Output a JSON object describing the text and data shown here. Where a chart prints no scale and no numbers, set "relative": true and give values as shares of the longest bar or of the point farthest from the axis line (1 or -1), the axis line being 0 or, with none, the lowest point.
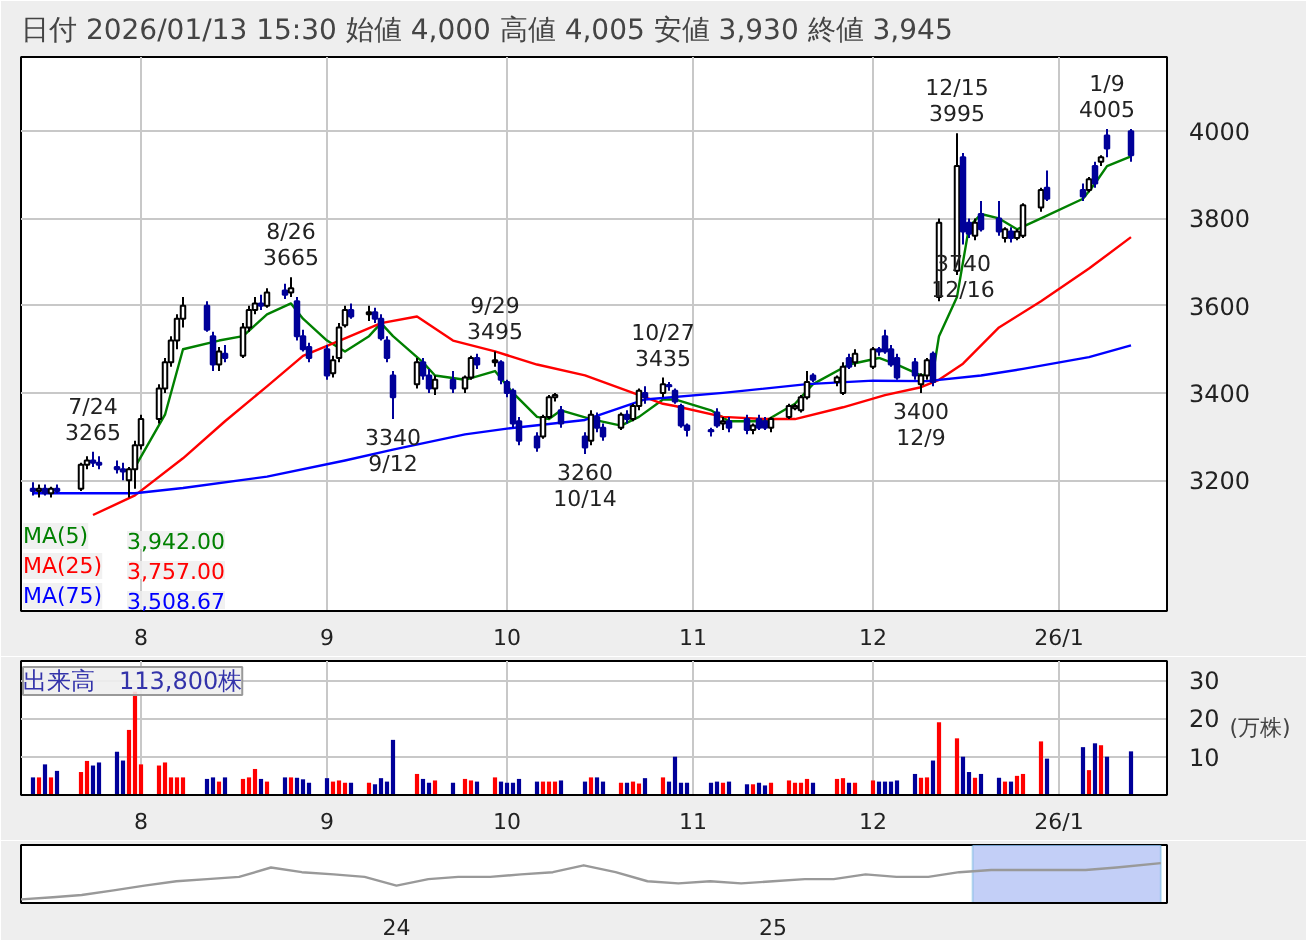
{
  "chart_data": [
    {
      "type": "candlestick",
      "title": "日付 2026/01/13 15:30 始値 4,000 高値 4,005 安値 3,930 終値 3,945",
      "x": [
        "2025-07-14",
        "2025-07-15",
        "2025-07-16",
        "2025-07-17",
        "2025-07-18",
        "2025-07-22",
        "2025-07-23",
        "2025-07-24",
        "2025-07-25",
        "2025-07-28",
        "2025-07-29",
        "2025-07-30",
        "2025-07-31",
        "2025-08-01",
        "2025-08-04",
        "2025-08-05",
        "2025-08-06",
        "2025-08-07",
        "2025-08-08",
        "2025-08-12",
        "2025-08-13",
        "2025-08-14",
        "2025-08-15",
        "2025-08-18",
        "2025-08-19",
        "2025-08-20",
        "2025-08-21",
        "2025-08-22",
        "2025-08-25",
        "2025-08-26",
        "2025-08-27",
        "2025-08-28",
        "2025-08-29",
        "2025-09-01",
        "2025-09-02",
        "2025-09-03",
        "2025-09-04",
        "2025-09-05",
        "2025-09-08",
        "2025-09-09",
        "2025-09-10",
        "2025-09-11",
        "2025-09-12",
        "2025-09-16",
        "2025-09-17",
        "2025-09-18",
        "2025-09-19",
        "2025-09-22",
        "2025-09-24",
        "2025-09-25",
        "2025-09-26",
        "2025-09-29",
        "2025-09-30",
        "2025-10-01",
        "2025-10-02",
        "2025-10-03",
        "2025-10-06",
        "2025-10-07",
        "2025-10-08",
        "2025-10-09",
        "2025-10-10",
        "2025-10-14",
        "2025-10-15",
        "2025-10-16",
        "2025-10-17",
        "2025-10-20",
        "2025-10-21",
        "2025-10-22",
        "2025-10-23",
        "2025-10-24",
        "2025-10-27",
        "2025-10-28",
        "2025-10-29",
        "2025-10-30",
        "2025-10-31",
        "2025-11-04",
        "2025-11-05",
        "2025-11-06",
        "2025-11-07",
        "2025-11-10",
        "2025-11-11",
        "2025-11-12",
        "2025-11-13",
        "2025-11-14",
        "2025-11-17",
        "2025-11-18",
        "2025-11-19",
        "2025-11-20",
        "2025-11-21",
        "2025-11-25",
        "2025-11-26",
        "2025-11-27",
        "2025-11-28",
        "2025-12-01",
        "2025-12-02",
        "2025-12-03",
        "2025-12-04",
        "2025-12-05",
        "2025-12-08",
        "2025-12-09",
        "2025-12-10",
        "2025-12-11",
        "2025-12-12",
        "2025-12-15",
        "2025-12-16",
        "2025-12-17",
        "2025-12-18",
        "2025-12-19",
        "2025-12-22",
        "2025-12-23",
        "2025-12-24",
        "2025-12-25",
        "2025-12-26",
        "2025-12-29",
        "2025-12-30",
        "2026-01-05",
        "2026-01-06",
        "2026-01-07",
        "2026-01-08",
        "2026-01-09",
        "2026-01-13"
      ],
      "ohlc": [
        [
          3180,
          3195,
          3165,
          3175
        ],
        [
          3175,
          3190,
          3160,
          3180
        ],
        [
          3180,
          3190,
          3165,
          3170
        ],
        [
          3170,
          3185,
          3160,
          3180
        ],
        [
          3180,
          3190,
          3170,
          3175
        ],
        [
          3180,
          3240,
          3175,
          3235
        ],
        [
          3235,
          3255,
          3225,
          3245
        ],
        [
          3245,
          3265,
          3230,
          3240
        ],
        [
          3240,
          3255,
          3225,
          3235
        ],
        [
          3230,
          3245,
          3215,
          3225
        ],
        [
          3225,
          3240,
          3200,
          3220
        ],
        [
          3200,
          3230,
          3160,
          3225
        ],
        [
          3225,
          3290,
          3180,
          3280
        ],
        [
          3280,
          3350,
          3270,
          3340
        ],
        [
          3340,
          3420,
          3330,
          3410
        ],
        [
          3410,
          3480,
          3400,
          3470
        ],
        [
          3470,
          3530,
          3460,
          3520
        ],
        [
          3520,
          3580,
          3500,
          3570
        ],
        [
          3570,
          3620,
          3550,
          3600
        ],
        [
          3600,
          3610,
          3540,
          3545
        ],
        [
          3530,
          3540,
          3450,
          3465
        ],
        [
          3465,
          3505,
          3450,
          3495
        ],
        [
          3490,
          3510,
          3470,
          3480
        ],
        [
          3485,
          3560,
          3480,
          3550
        ],
        [
          3550,
          3600,
          3540,
          3590
        ],
        [
          3590,
          3620,
          3580,
          3605
        ],
        [
          3605,
          3625,
          3590,
          3600
        ],
        [
          3600,
          3640,
          3595,
          3630
        ],
        [
          3635,
          3650,
          3615,
          3625
        ],
        [
          3630,
          3665,
          3620,
          3640
        ],
        [
          3610,
          3620,
          3520,
          3530
        ],
        [
          3530,
          3545,
          3495,
          3500
        ],
        [
          3505,
          3515,
          3470,
          3480
        ],
        [
          3500,
          3510,
          3430,
          3440
        ],
        [
          3445,
          3485,
          3435,
          3475
        ],
        [
          3480,
          3560,
          3470,
          3550
        ],
        [
          3555,
          3600,
          3550,
          3590
        ],
        [
          3590,
          3605,
          3570,
          3575
        ],
        [
          3580,
          3600,
          3565,
          3585
        ],
        [
          3585,
          3595,
          3560,
          3570
        ],
        [
          3570,
          3580,
          3520,
          3525
        ],
        [
          3520,
          3530,
          3470,
          3480
        ],
        [
          3440,
          3450,
          3340,
          3390
        ],
        [
          3420,
          3480,
          3410,
          3470
        ],
        [
          3470,
          3480,
          3430,
          3440
        ],
        [
          3440,
          3455,
          3400,
          3410
        ],
        [
          3410,
          3440,
          3395,
          3430
        ],
        [
          3430,
          3450,
          3400,
          3410
        ],
        [
          3410,
          3440,
          3400,
          3435
        ],
        [
          3435,
          3485,
          3430,
          3480
        ],
        [
          3480,
          3490,
          3455,
          3465
        ],
        [
          3470,
          3495,
          3460,
          3475
        ],
        [
          3470,
          3475,
          3420,
          3430
        ],
        [
          3425,
          3430,
          3390,
          3400
        ],
        [
          3405,
          3410,
          3320,
          3330
        ],
        [
          3335,
          3345,
          3280,
          3290
        ],
        [
          3300,
          3310,
          3265,
          3275
        ],
        [
          3300,
          3350,
          3295,
          3345
        ],
        [
          3345,
          3395,
          3340,
          3390
        ],
        [
          3390,
          3400,
          3380,
          3395
        ],
        [
          3360,
          3370,
          3320,
          3330
        ],
        [
          3300,
          3310,
          3260,
          3275
        ],
        [
          3290,
          3360,
          3280,
          3350
        ],
        [
          3345,
          3355,
          3310,
          3320
        ],
        [
          3320,
          3330,
          3290,
          3300
        ],
        [
          3320,
          3355,
          3315,
          3350
        ],
        [
          3350,
          3360,
          3330,
          3340
        ],
        [
          3340,
          3375,
          3335,
          3370
        ],
        [
          3370,
          3410,
          3360,
          3405
        ],
        [
          3400,
          3415,
          3375,
          3390
        ],
        [
          3400,
          3435,
          3390,
          3420
        ],
        [
          3418,
          3425,
          3405,
          3415
        ],
        [
          3405,
          3410,
          3375,
          3380
        ],
        [
          3370,
          3375,
          3320,
          3325
        ],
        [
          3325,
          3330,
          3300,
          3315
        ],
        [
          3315,
          3320,
          3300,
          3312
        ],
        [
          3355,
          3365,
          3320,
          3325
        ],
        [
          3330,
          3345,
          3315,
          3335
        ],
        [
          3335,
          3345,
          3310,
          3320
        ],
        [
          3340,
          3350,
          3305,
          3315
        ],
        [
          3315,
          3330,
          3305,
          3325
        ],
        [
          3340,
          3350,
          3315,
          3320
        ],
        [
          3335,
          3345,
          3315,
          3320
        ],
        [
          3320,
          3345,
          3310,
          3340
        ],
        [
          3345,
          3375,
          3340,
          3370
        ],
        [
          3365,
          3375,
          3360,
          3370
        ],
        [
          3360,
          3395,
          3355,
          3390
        ],
        [
          3390,
          3450,
          3385,
          3425
        ],
        [
          3440,
          3445,
          3425,
          3430
        ],
        [
          3425,
          3440,
          3415,
          3435
        ],
        [
          3400,
          3470,
          3395,
          3460
        ],
        [
          3480,
          3490,
          3455,
          3460
        ],
        [
          3470,
          3500,
          3460,
          3490
        ],
        [
          3460,
          3505,
          3455,
          3500
        ],
        [
          3500,
          3505,
          3485,
          3495
        ],
        [
          3530,
          3545,
          3490,
          3495
        ],
        [
          3500,
          3510,
          3460,
          3465
        ],
        [
          3480,
          3490,
          3430,
          3435
        ],
        [
          3470,
          3480,
          3430,
          3440
        ],
        [
          3420,
          3445,
          3400,
          3440
        ],
        [
          3440,
          3480,
          3430,
          3475
        ],
        [
          3490,
          3495,
          3415,
          3425
        ],
        [
          3620,
          3800,
          3610,
          3790
        ],
        [
          3680,
          3995,
          3670,
          3920
        ],
        [
          3940,
          3950,
          3740,
          3770
        ],
        [
          3790,
          3800,
          3755,
          3765
        ],
        [
          3760,
          3800,
          3750,
          3790
        ],
        [
          3810,
          3840,
          3770,
          3775
        ],
        [
          3800,
          3840,
          3760,
          3770
        ],
        [
          3755,
          3780,
          3745,
          3775
        ],
        [
          3770,
          3780,
          3745,
          3755
        ],
        [
          3755,
          3775,
          3750,
          3770
        ],
        [
          3760,
          3835,
          3755,
          3830
        ],
        [
          3825,
          3870,
          3815,
          3865
        ],
        [
          3870,
          3910,
          3840,
          3845
        ],
        [
          3865,
          3880,
          3840,
          3850
        ],
        [
          3865,
          3895,
          3860,
          3890
        ],
        [
          3920,
          3930,
          3870,
          3880
        ],
        [
          3930,
          3945,
          3920,
          3940
        ],
        [
          3990,
          4005,
          3940,
          3960
        ],
        [
          4000,
          4005,
          3930,
          3945
        ]
      ],
      "series": [
        {
          "name": "MA(5)",
          "type": "line",
          "color": "#008000",
          "x": [
            "2025-07-31",
            "2025-08-05",
            "2025-08-08",
            "2025-08-14",
            "2025-08-18",
            "2025-08-22",
            "2025-08-26",
            "2025-08-28",
            "2025-09-01",
            "2025-09-04",
            "2025-09-08",
            "2025-09-10",
            "2025-09-12",
            "2025-09-17",
            "2025-09-19",
            "2025-09-24",
            "2025-09-29",
            "2025-10-02",
            "2025-10-06",
            "2025-10-08",
            "2025-10-10",
            "2025-10-15",
            "2025-10-20",
            "2025-10-23",
            "2025-10-27",
            "2025-10-29",
            "2025-11-04",
            "2025-11-07",
            "2025-11-13",
            "2025-11-18",
            "2025-11-21",
            "2025-11-27",
            "2025-12-02",
            "2025-12-05",
            "2025-12-09",
            "2025-12-11",
            "2025-12-12",
            "2025-12-15",
            "2025-12-16",
            "2025-12-17",
            "2025-12-19",
            "2025-12-22",
            "2025-12-25",
            "2025-12-29",
            "2026-01-05",
            "2026-01-07",
            "2026-01-09",
            "2026-01-13"
          ],
          "values": [
            3230,
            3350,
            3500,
            3520,
            3530,
            3580,
            3605,
            3570,
            3520,
            3495,
            3530,
            3560,
            3530,
            3470,
            3440,
            3430,
            3450,
            3400,
            3345,
            3340,
            3360,
            3340,
            3325,
            3345,
            3385,
            3385,
            3360,
            3335,
            3335,
            3375,
            3420,
            3465,
            3480,
            3465,
            3440,
            3445,
            3530,
            3620,
            3700,
            3780,
            3810,
            3800,
            3775,
            3800,
            3845,
            3880,
            3920,
            3942
          ]
        },
        {
          "name": "MA(25)",
          "type": "line",
          "color": "#ff0000",
          "x": [
            "2025-07-24",
            "2025-07-31",
            "2025-08-08",
            "2025-08-15",
            "2025-08-22",
            "2025-08-28",
            "2025-09-04",
            "2025-09-10",
            "2025-09-16",
            "2025-09-22",
            "2025-09-29",
            "2025-10-06",
            "2025-10-14",
            "2025-10-22",
            "2025-10-27",
            "2025-10-29",
            "2025-11-06",
            "2025-11-13",
            "2025-11-18",
            "2025-11-26",
            "2025-12-03",
            "2025-12-09",
            "2025-12-12",
            "2025-12-16",
            "2025-12-22",
            "2025-12-29",
            "2026-01-06",
            "2026-01-13"
          ],
          "values": [
            3120,
            3165,
            3250,
            3335,
            3415,
            3485,
            3525,
            3560,
            3575,
            3520,
            3495,
            3465,
            3440,
            3400,
            3375,
            3370,
            3345,
            3340,
            3340,
            3367,
            3395,
            3413,
            3430,
            3467,
            3550,
            3610,
            3685,
            3757
          ]
        },
        {
          "name": "MA(75)",
          "type": "line",
          "color": "#0000ff",
          "x": [
            "2025-07-14",
            "2025-07-31",
            "2025-08-08",
            "2025-08-22",
            "2025-09-04",
            "2025-09-12",
            "2025-09-24",
            "2025-10-01",
            "2025-10-14",
            "2025-10-24",
            "2025-11-06",
            "2025-11-20",
            "2025-12-01",
            "2025-12-10",
            "2025-12-19",
            "2025-12-26",
            "2026-01-06",
            "2026-01-13"
          ],
          "values": [
            3170,
            3170,
            3182,
            3208,
            3245,
            3270,
            3305,
            3318,
            3338,
            3385,
            3400,
            3420,
            3428,
            3427,
            3440,
            3455,
            3482,
            3509
          ]
        }
      ],
      "xlim": [
        "2025-07-12",
        "2026-01-19"
      ],
      "xticks": [
        {
          "value": "2025-08-01",
          "label": "8"
        },
        {
          "value": "2025-09-01",
          "label": "9"
        },
        {
          "value": "2025-10-01",
          "label": "10"
        },
        {
          "value": "2025-11-01",
          "label": "11"
        },
        {
          "value": "2025-12-01",
          "label": "12"
        },
        {
          "value": "2026-01-01",
          "label": "26/1"
        }
      ],
      "ylim": [
        2900,
        4170
      ],
      "yticks": [
        3200,
        3400,
        3600,
        3800,
        4000
      ],
      "grid": true,
      "legend": "bottom left",
      "annotations": [
        {
          "text": "7/24\n3265",
          "x": "2025-07-24",
          "y": 3265
        },
        {
          "text": "8/26\n3665",
          "x": "2025-08-26",
          "y": 3665
        },
        {
          "text": "3340\n9/12",
          "x": "2025-09-12",
          "y": 3340
        },
        {
          "text": "9/29\n3495",
          "x": "2025-09-29",
          "y": 3495
        },
        {
          "text": "3260\n10/14",
          "x": "2025-10-14",
          "y": 3260
        },
        {
          "text": "10/27\n3435",
          "x": "2025-10-27",
          "y": 3435
        },
        {
          "text": "3400\n12/9",
          "x": "2025-12-09",
          "y": 3400
        },
        {
          "text": "12/15\n3995",
          "x": "2025-12-15",
          "y": 3995
        },
        {
          "text": "3740\n12/16",
          "x": "2025-12-16",
          "y": 3740
        },
        {
          "text": "1/9\n4005",
          "x": "2026-01-09",
          "y": 4005
        },
        "3,942.00",
        "3,757.00",
        "3,508.67"
      ]
    },
    {
      "type": "bar",
      "title": "出来高　113,800株",
      "ylabel": "(万株)",
      "x": [
        "2025-07-14",
        "2025-07-15",
        "2025-07-16",
        "2025-07-17",
        "2025-07-18",
        "2025-07-22",
        "2025-07-23",
        "2025-07-24",
        "2025-07-25",
        "2025-07-28",
        "2025-07-29",
        "2025-07-30",
        "2025-07-31",
        "2025-08-01",
        "2025-08-04",
        "2025-08-05",
        "2025-08-06",
        "2025-08-07",
        "2025-08-08",
        "2025-08-12",
        "2025-08-13",
        "2025-08-14",
        "2025-08-15",
        "2025-08-18",
        "2025-08-19",
        "2025-08-20",
        "2025-08-21",
        "2025-08-22",
        "2025-08-25",
        "2025-08-26",
        "2025-08-27",
        "2025-08-28",
        "2025-08-29",
        "2025-09-01",
        "2025-09-02",
        "2025-09-03",
        "2025-09-04",
        "2025-09-05",
        "2025-09-08",
        "2025-09-09",
        "2025-09-10",
        "2025-09-11",
        "2025-09-12",
        "2025-09-16",
        "2025-09-17",
        "2025-09-18",
        "2025-09-19",
        "2025-09-22",
        "2025-09-24",
        "2025-09-25",
        "2025-09-26",
        "2025-09-29",
        "2025-09-30",
        "2025-10-01",
        "2025-10-02",
        "2025-10-03",
        "2025-10-06",
        "2025-10-07",
        "2025-10-08",
        "2025-10-09",
        "2025-10-10",
        "2025-10-14",
        "2025-10-15",
        "2025-10-16",
        "2025-10-17",
        "2025-10-20",
        "2025-10-21",
        "2025-10-22",
        "2025-10-23",
        "2025-10-24",
        "2025-10-27",
        "2025-10-28",
        "2025-10-29",
        "2025-10-30",
        "2025-10-31",
        "2025-11-04",
        "2025-11-05",
        "2025-11-06",
        "2025-11-07",
        "2025-11-10",
        "2025-11-11",
        "2025-11-12",
        "2025-11-13",
        "2025-11-14",
        "2025-11-17",
        "2025-11-18",
        "2025-11-19",
        "2025-11-20",
        "2025-11-21",
        "2025-11-25",
        "2025-11-26",
        "2025-11-27",
        "2025-11-28",
        "2025-12-01",
        "2025-12-02",
        "2025-12-03",
        "2025-12-04",
        "2025-12-05",
        "2025-12-08",
        "2025-12-09",
        "2025-12-10",
        "2025-12-11",
        "2025-12-12",
        "2025-12-15",
        "2025-12-16",
        "2025-12-17",
        "2025-12-18",
        "2025-12-19",
        "2025-12-22",
        "2025-12-23",
        "2025-12-24",
        "2025-12-25",
        "2025-12-26",
        "2025-12-29",
        "2025-12-30",
        "2026-01-05",
        "2026-01-06",
        "2026-01-07",
        "2026-01-08",
        "2026-01-09",
        "2026-01-13"
      ],
      "values": [
        4.6,
        4.6,
        8,
        4.6,
        6.3,
        6,
        8.9,
        7.7,
        8.5,
        11.3,
        9,
        17,
        27,
        8,
        7.7,
        8.5,
        4.6,
        4.6,
        4.6,
        4.2,
        4.6,
        3.5,
        4.6,
        4.2,
        4.6,
        6.8,
        4.2,
        3.5,
        4.6,
        4.6,
        4.5,
        4.1,
        3.2,
        4.4,
        3.5,
        3.8,
        3.2,
        3.2,
        3.2,
        2.8,
        4.4,
        3.5,
        14.4,
        5.5,
        4.2,
        3.2,
        3.8,
        3.2,
        4.2,
        3.8,
        3.5,
        4.6,
        3.5,
        3.2,
        3.2,
        4.2,
        3.5,
        3.5,
        3.5,
        3.5,
        3.8,
        3.5,
        4.6,
        4.6,
        3.5,
        3.2,
        3.2,
        3.5,
        3,
        4.4,
        4.6,
        3.5,
        10,
        3.2,
        3.2,
        3.2,
        3.5,
        3.2,
        3.5,
        2.8,
        2.8,
        3.2,
        2.5,
        3.2,
        3.8,
        3.2,
        3.2,
        4.2,
        3.2,
        4.2,
        4.4,
        3.2,
        3.2,
        3.8,
        3.5,
        3.5,
        3.5,
        3.8,
        5.5,
        4.5,
        4.6,
        9,
        19,
        14.8,
        10,
        6,
        4.5,
        5.5,
        4.5,
        3.5,
        3.5,
        5,
        5.5,
        14,
        9.5,
        12.5,
        6.5,
        13.5,
        13,
        10,
        11.4
      ],
      "colors": [
        "#000099",
        "#ff0000",
        "#000099",
        "#ff0000",
        "#000099",
        "#ff0000",
        "#ff0000",
        "#000099",
        "#000099",
        "#000099",
        "#000099",
        "#ff0000",
        "#ff0000",
        "#ff0000",
        "#ff0000",
        "#ff0000",
        "#ff0000",
        "#ff0000",
        "#ff0000",
        "#000099",
        "#000099",
        "#ff0000",
        "#000099",
        "#ff0000",
        "#ff0000",
        "#ff0000",
        "#000099",
        "#ff0000",
        "#000099",
        "#ff0000",
        "#000099",
        "#000099",
        "#000099",
        "#000099",
        "#ff0000",
        "#ff0000",
        "#ff0000",
        "#000099",
        "#ff0000",
        "#000099",
        "#000099",
        "#000099",
        "#000099",
        "#ff0000",
        "#000099",
        "#000099",
        "#ff0000",
        "#000099",
        "#ff0000",
        "#ff0000",
        "#000099",
        "#ff0000",
        "#000099",
        "#000099",
        "#000099",
        "#000099",
        "#000099",
        "#ff0000",
        "#ff0000",
        "#ff0000",
        "#000099",
        "#000099",
        "#ff0000",
        "#000099",
        "#000099",
        "#ff0000",
        "#000099",
        "#ff0000",
        "#ff0000",
        "#000099",
        "#ff0000",
        "#000099",
        "#000099",
        "#000099",
        "#000099",
        "#000099",
        "#000099",
        "#ff0000",
        "#000099",
        "#000099",
        "#ff0000",
        "#000099",
        "#000099",
        "#ff0000",
        "#ff0000",
        "#ff0000",
        "#ff0000",
        "#ff0000",
        "#000099",
        "#ff0000",
        "#ff0000",
        "#000099",
        "#ff0000",
        "#ff0000",
        "#000099",
        "#000099",
        "#000099",
        "#000099",
        "#000099",
        "#ff0000",
        "#ff0000",
        "#000099",
        "#ff0000",
        "#ff0000",
        "#000099",
        "#000099",
        "#ff0000",
        "#000099",
        "#000099",
        "#ff0000",
        "#000099",
        "#ff0000",
        "#ff0000",
        "#ff0000",
        "#000099",
        "#000099",
        "#ff0000",
        "#000099",
        "#ff0000",
        "#000099",
        "#000099"
      ],
      "xlim": [
        "2025-07-12",
        "2026-01-19"
      ],
      "xticks": [
        {
          "value": "2025-08-01",
          "label": "8"
        },
        {
          "value": "2025-09-01",
          "label": "9"
        },
        {
          "value": "2025-10-01",
          "label": "10"
        },
        {
          "value": "2025-11-01",
          "label": "11"
        },
        {
          "value": "2025-12-01",
          "label": "12"
        },
        {
          "value": "2026-01-01",
          "label": "26/1"
        }
      ],
      "ylim": [
        0,
        35
      ],
      "yticks": [
        10,
        20,
        30
      ],
      "grid": true
    },
    {
      "type": "line",
      "relative": true,
      "color": "#999999",
      "x": [
        "2023-01-01",
        "2023-02-01",
        "2023-03-01",
        "2023-04-01",
        "2023-05-01",
        "2023-06-01",
        "2023-07-01",
        "2023-08-01",
        "2023-09-01",
        "2023-10-01",
        "2023-11-01",
        "2023-12-01",
        "2024-01-01",
        "2024-02-01",
        "2024-03-01",
        "2024-04-01",
        "2024-05-01",
        "2024-06-01",
        "2024-07-01",
        "2024-08-01",
        "2024-09-01",
        "2024-10-01",
        "2024-11-01",
        "2024-12-01",
        "2025-01-01",
        "2025-02-01",
        "2025-03-01",
        "2025-04-01",
        "2025-05-01",
        "2025-06-01",
        "2025-07-01",
        "2025-08-01",
        "2025-09-01",
        "2025-10-01",
        "2025-11-01",
        "2025-12-01",
        "2026-01-13"
      ],
      "values": [
        0,
        0.06,
        0.12,
        0.25,
        0.38,
        0.5,
        0.56,
        0.62,
        0.88,
        0.75,
        0.69,
        0.62,
        0.38,
        0.56,
        0.62,
        0.62,
        0.69,
        0.75,
        0.94,
        0.75,
        0.5,
        0.44,
        0.5,
        0.44,
        0.5,
        0.56,
        0.56,
        0.69,
        0.62,
        0.62,
        0.75,
        0.81,
        0.81,
        0.81,
        0.81,
        0.88,
        1
      ],
      "xlim": [
        "2023-01-01",
        "2026-01-19"
      ],
      "xticks": [
        {
          "value": "2024-01-01",
          "label": "24"
        },
        {
          "value": "2025-01-01",
          "label": "25"
        }
      ],
      "bands": [
        {
          "axis": "x",
          "from": "2025-07-14",
          "to": "2026-01-13",
          "color": "#b4c3f5"
        }
      ],
      "tick_labels": "x"
    }
  ]
}
